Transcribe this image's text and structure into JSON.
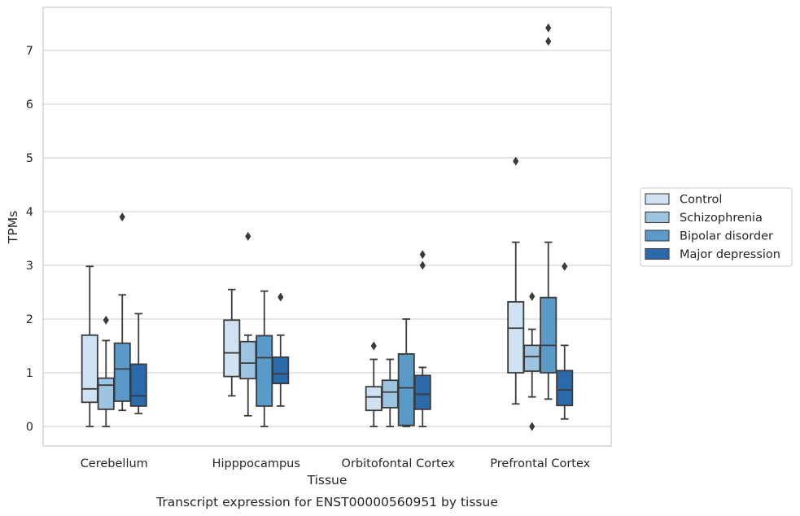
{
  "chart_data": {
    "type": "box",
    "title": "",
    "xlabel": "Tissue",
    "ylabel": "TPMs",
    "caption": "Transcript expression for ENST00000560951 by tissue",
    "ylim": [
      -0.35,
      7.8
    ],
    "yticks": [
      "0",
      "1",
      "2",
      "3",
      "4",
      "5",
      "6",
      "7"
    ],
    "grid": "horizontal",
    "legend_position": "right",
    "categories": [
      "Cerebellum",
      "Hipppocampus",
      "Orbitofontal Cortex",
      "Prefrontal Cortex"
    ],
    "series": [
      {
        "name": "Control",
        "color": "#d0e2f2",
        "boxes": [
          {
            "whislo": 0.0,
            "q1": 0.45,
            "med": 0.7,
            "q3": 1.7,
            "whishi": 2.98,
            "fliers": []
          },
          {
            "whislo": 0.57,
            "q1": 0.93,
            "med": 1.37,
            "q3": 1.98,
            "whishi": 2.55,
            "fliers": []
          },
          {
            "whislo": 0.0,
            "q1": 0.3,
            "med": 0.55,
            "q3": 0.74,
            "whishi": 1.25,
            "fliers": [
              1.5
            ]
          },
          {
            "whislo": 0.42,
            "q1": 1.0,
            "med": 1.83,
            "q3": 2.32,
            "whishi": 3.43,
            "fliers": [
              4.94
            ]
          }
        ]
      },
      {
        "name": "Schizophrenia",
        "color": "#9dc4e0",
        "boxes": [
          {
            "whislo": 0.0,
            "q1": 0.32,
            "med": 0.77,
            "q3": 0.9,
            "whishi": 1.6,
            "fliers": [
              1.98
            ]
          },
          {
            "whislo": 0.2,
            "q1": 0.89,
            "med": 1.18,
            "q3": 1.58,
            "whishi": 1.7,
            "fliers": [
              3.54
            ]
          },
          {
            "whislo": 0.0,
            "q1": 0.35,
            "med": 0.64,
            "q3": 0.86,
            "whishi": 1.25,
            "fliers": []
          },
          {
            "whislo": 0.55,
            "q1": 1.03,
            "med": 1.3,
            "q3": 1.51,
            "whishi": 1.81,
            "fliers": [
              2.42,
              0.0
            ]
          }
        ]
      },
      {
        "name": "Bipolar disorder",
        "color": "#5a9ac9",
        "boxes": [
          {
            "whislo": 0.3,
            "q1": 0.47,
            "med": 1.07,
            "q3": 1.55,
            "whishi": 2.45,
            "fliers": [
              3.9
            ]
          },
          {
            "whislo": 0.0,
            "q1": 0.38,
            "med": 1.28,
            "q3": 1.69,
            "whishi": 2.52,
            "fliers": []
          },
          {
            "whislo": 0.0,
            "q1": 0.02,
            "med": 0.72,
            "q3": 1.35,
            "whishi": 2.0,
            "fliers": []
          },
          {
            "whislo": 0.51,
            "q1": 1.0,
            "med": 1.51,
            "q3": 2.4,
            "whishi": 3.43,
            "fliers": [
              7.17,
              7.42
            ]
          }
        ]
      },
      {
        "name": "Major depression",
        "color": "#2a6aaa",
        "boxes": [
          {
            "whislo": 0.24,
            "q1": 0.38,
            "med": 0.57,
            "q3": 1.16,
            "whishi": 2.1,
            "fliers": []
          },
          {
            "whislo": 0.38,
            "q1": 0.8,
            "med": 0.98,
            "q3": 1.29,
            "whishi": 1.7,
            "fliers": [
              2.41
            ]
          },
          {
            "whislo": 0.0,
            "q1": 0.32,
            "med": 0.6,
            "q3": 0.95,
            "whishi": 1.1,
            "fliers": [
              3.0,
              3.2
            ]
          },
          {
            "whislo": 0.14,
            "q1": 0.39,
            "med": 0.68,
            "q3": 1.04,
            "whishi": 1.51,
            "fliers": [
              2.98
            ]
          }
        ]
      }
    ]
  }
}
